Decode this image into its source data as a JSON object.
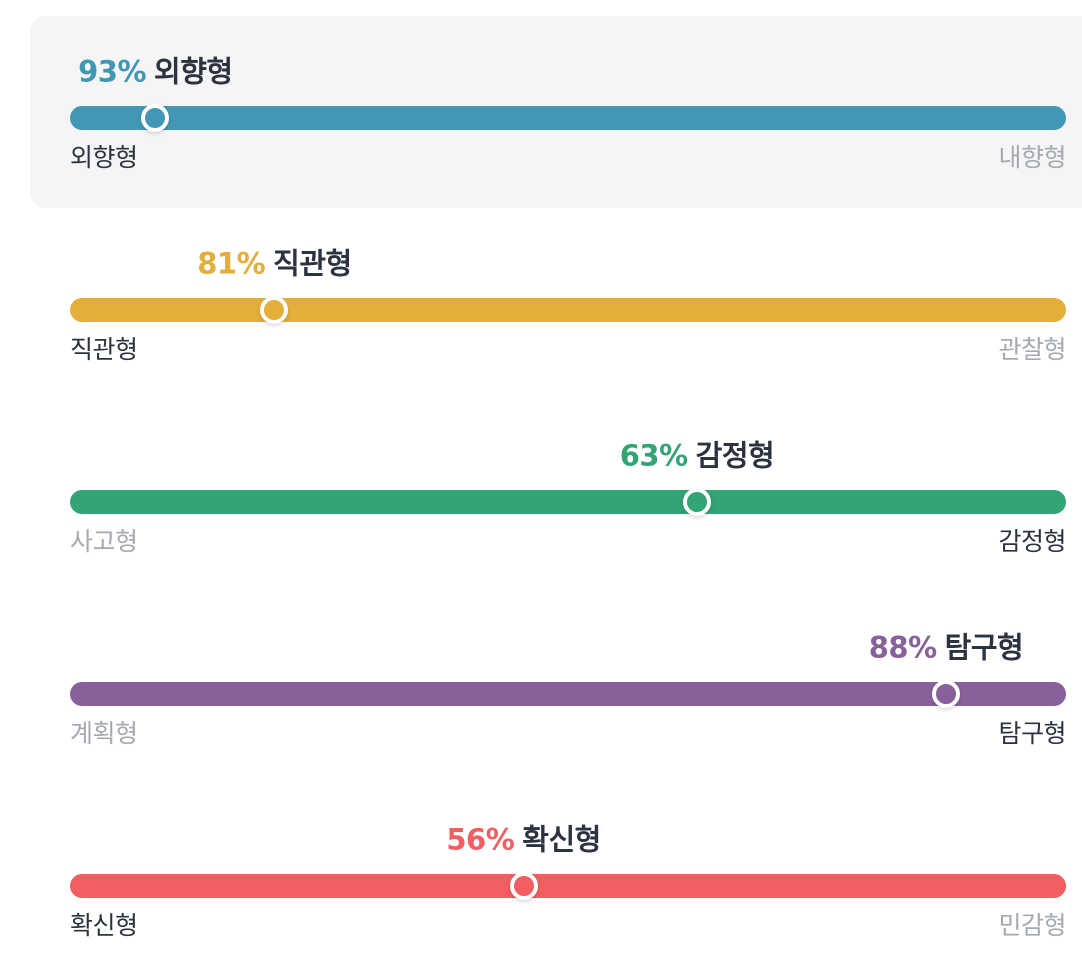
{
  "traits": [
    {
      "percent_text": "93%",
      "name": "외향형",
      "left_label": "외향형",
      "right_label": "내향형",
      "active_side": "left",
      "position": 0.0857,
      "color": "#4298b4",
      "highlighted": true
    },
    {
      "percent_text": "81%",
      "name": "직관형",
      "left_label": "직관형",
      "right_label": "관찰형",
      "active_side": "left",
      "position": 0.2053,
      "color": "#e4ae3a",
      "highlighted": false
    },
    {
      "percent_text": "63%",
      "name": "감정형",
      "left_label": "사고형",
      "right_label": "감정형",
      "active_side": "right",
      "position": 0.6295,
      "color": "#33a474",
      "highlighted": false
    },
    {
      "percent_text": "88%",
      "name": "탐구형",
      "left_label": "계획형",
      "right_label": "탐구형",
      "active_side": "right",
      "position": 0.8795,
      "color": "#88619a",
      "highlighted": false
    },
    {
      "percent_text": "56%",
      "name": "확신형",
      "left_label": "확신형",
      "right_label": "민감형",
      "active_side": "left",
      "position": 0.4554,
      "color": "#f25e62",
      "highlighted": false
    }
  ]
}
